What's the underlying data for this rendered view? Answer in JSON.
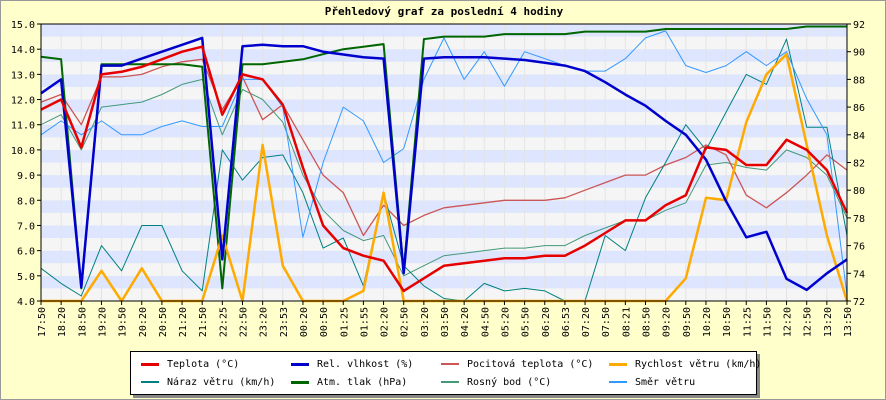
{
  "chart_data": {
    "type": "line",
    "title": "Přehledový graf za poslední 4 hodiny",
    "x": [
      "17:50",
      "18:20",
      "18:50",
      "19:20",
      "19:50",
      "20:20",
      "20:50",
      "21:20",
      "21:50",
      "22:25",
      "22:50",
      "23:20",
      "23:53",
      "00:20",
      "00:50",
      "01:25",
      "01:55",
      "02:20",
      "02:50",
      "03:20",
      "03:50",
      "04:20",
      "04:50",
      "05:20",
      "05:50",
      "06:20",
      "06:53",
      "07:20",
      "07:50",
      "08:21",
      "08:50",
      "09:20",
      "09:50",
      "10:20",
      "10:50",
      "11:25",
      "11:50",
      "12:20",
      "12:50",
      "13:20",
      "13:50"
    ],
    "y_left": {
      "min": 4.0,
      "max": 15.0,
      "ticks": [
        "4.0",
        "5.0",
        "6.0",
        "7.0",
        "8.0",
        "9.0",
        "10.0",
        "11.0",
        "12.0",
        "13.0",
        "14.0",
        "15.0"
      ]
    },
    "y_right": {
      "min": 72,
      "max": 92,
      "ticks": [
        "72",
        "74",
        "76",
        "78",
        "80",
        "82",
        "84",
        "86",
        "88",
        "90",
        "92"
      ]
    },
    "grid": "horizontal bands",
    "legend_position": "bottom",
    "series": [
      {
        "name": "Teplota (°C)",
        "color": "#e60000",
        "axis": "left",
        "width": 2.5,
        "values": [
          11.6,
          12.0,
          10.1,
          13.0,
          13.1,
          13.3,
          13.6,
          13.9,
          14.1,
          11.4,
          13.0,
          12.8,
          11.8,
          9.3,
          7.0,
          6.1,
          5.8,
          5.6,
          4.4,
          4.9,
          5.4,
          5.5,
          5.6,
          5.7,
          5.7,
          5.8,
          5.8,
          6.2,
          6.7,
          7.2,
          7.2,
          7.8,
          8.2,
          10.1,
          10.0,
          9.4,
          9.4,
          10.4,
          10.0,
          9.2,
          7.5
        ]
      },
      {
        "name": "Rel. vlhkost (%)",
        "color": "#0000cc",
        "axis": "right",
        "width": 2.5,
        "values": [
          87.0,
          88.0,
          73.0,
          89.0,
          89.0,
          89.5,
          90.0,
          90.5,
          91.0,
          75.0,
          90.4,
          90.5,
          90.4,
          90.4,
          90.0,
          89.8,
          89.6,
          89.5,
          74.0,
          89.5,
          89.6,
          89.6,
          89.6,
          89.5,
          89.4,
          89.2,
          89.0,
          88.6,
          87.8,
          86.9,
          86.1,
          85.0,
          84.0,
          82.2,
          79.2,
          76.6,
          77.0,
          73.6,
          72.8,
          74.0,
          75.0
        ]
      },
      {
        "name": "Pocitová teplota (°C)",
        "color": "#cc5555",
        "axis": "left",
        "width": 1.3,
        "values": [
          11.9,
          12.2,
          11.0,
          12.9,
          12.9,
          13.0,
          13.3,
          13.5,
          13.6,
          11.6,
          12.9,
          11.2,
          11.8,
          10.4,
          9.0,
          8.3,
          6.6,
          7.8,
          7.0,
          7.4,
          7.7,
          7.8,
          7.9,
          8.0,
          8.0,
          8.0,
          8.1,
          8.4,
          8.7,
          9.0,
          9.0,
          9.4,
          9.7,
          10.2,
          9.8,
          8.2,
          7.7,
          8.3,
          9.0,
          9.8,
          9.2
        ]
      },
      {
        "name": "Rychlost větru (km/h)",
        "color": "#ffaa00",
        "axis": "left",
        "width": 2.5,
        "values": [
          4.0,
          4.0,
          4.0,
          5.2,
          4.0,
          5.3,
          4.0,
          4.0,
          4.0,
          6.6,
          4.0,
          10.2,
          5.4,
          4.0,
          4.0,
          4.0,
          4.4,
          8.3,
          4.0,
          4.0,
          4.0,
          4.0,
          4.0,
          4.0,
          4.0,
          4.0,
          4.0,
          4.0,
          4.0,
          4.0,
          4.0,
          4.0,
          4.9,
          8.1,
          8.0,
          11.1,
          13.0,
          13.8,
          10.2,
          6.6,
          4.0
        ]
      },
      {
        "name": "Náraz větru (km/h)",
        "color": "#008080",
        "axis": "left",
        "width": 1,
        "values": [
          5.3,
          4.7,
          4.2,
          6.2,
          5.2,
          7.0,
          7.0,
          5.2,
          4.4,
          10.0,
          8.8,
          9.7,
          9.8,
          8.3,
          6.1,
          6.5,
          4.6,
          8.3,
          5.4,
          4.6,
          4.1,
          4.0,
          4.7,
          4.4,
          4.5,
          4.4,
          4.0,
          4.0,
          6.6,
          6.0,
          8.1,
          9.5,
          11.0,
          10.0,
          11.5,
          13.0,
          12.6,
          14.4,
          10.9,
          10.9,
          6.6
        ]
      },
      {
        "name": "Atm. tlak (hPa)",
        "color": "#006600",
        "axis": "left",
        "width": 2,
        "values": [
          13.7,
          13.6,
          4.5,
          13.4,
          13.4,
          13.4,
          13.4,
          13.4,
          13.3,
          4.5,
          13.4,
          13.4,
          13.5,
          13.6,
          13.8,
          14.0,
          14.1,
          14.2,
          5.2,
          14.4,
          14.5,
          14.5,
          14.5,
          14.6,
          14.6,
          14.6,
          14.6,
          14.7,
          14.7,
          14.7,
          14.7,
          14.8,
          14.8,
          14.8,
          14.8,
          14.8,
          14.8,
          14.8,
          14.9,
          14.9,
          14.9
        ]
      },
      {
        "name": "Rosný bod (°C)",
        "color": "#449977",
        "axis": "left",
        "width": 1,
        "values": [
          11.0,
          11.4,
          10.0,
          11.7,
          11.8,
          11.9,
          12.2,
          12.6,
          12.8,
          10.6,
          12.4,
          12.0,
          11.1,
          9.0,
          7.6,
          6.8,
          6.4,
          6.6,
          5.0,
          5.4,
          5.8,
          5.9,
          6.0,
          6.1,
          6.1,
          6.2,
          6.2,
          6.6,
          6.9,
          7.2,
          7.2,
          7.6,
          7.9,
          9.4,
          9.5,
          9.3,
          9.2,
          10.0,
          9.7,
          9.0,
          7.3
        ]
      },
      {
        "name": "Směr větru",
        "color": "#3399ff",
        "axis": "right",
        "width": 1,
        "values": [
          84.0,
          85.0,
          84.0,
          85.0,
          84.0,
          84.0,
          84.6,
          85.0,
          84.6,
          84.6,
          88.0,
          88.0,
          86.0,
          76.6,
          82.0,
          86.0,
          85.0,
          82.0,
          83.0,
          88.0,
          91.0,
          88.0,
          90.0,
          87.5,
          90.0,
          89.5,
          89.0,
          88.6,
          88.6,
          89.5,
          91.0,
          91.5,
          89.0,
          88.5,
          89.0,
          90.0,
          89.0,
          90.0,
          86.6,
          84.0,
          72.4
        ]
      }
    ]
  }
}
